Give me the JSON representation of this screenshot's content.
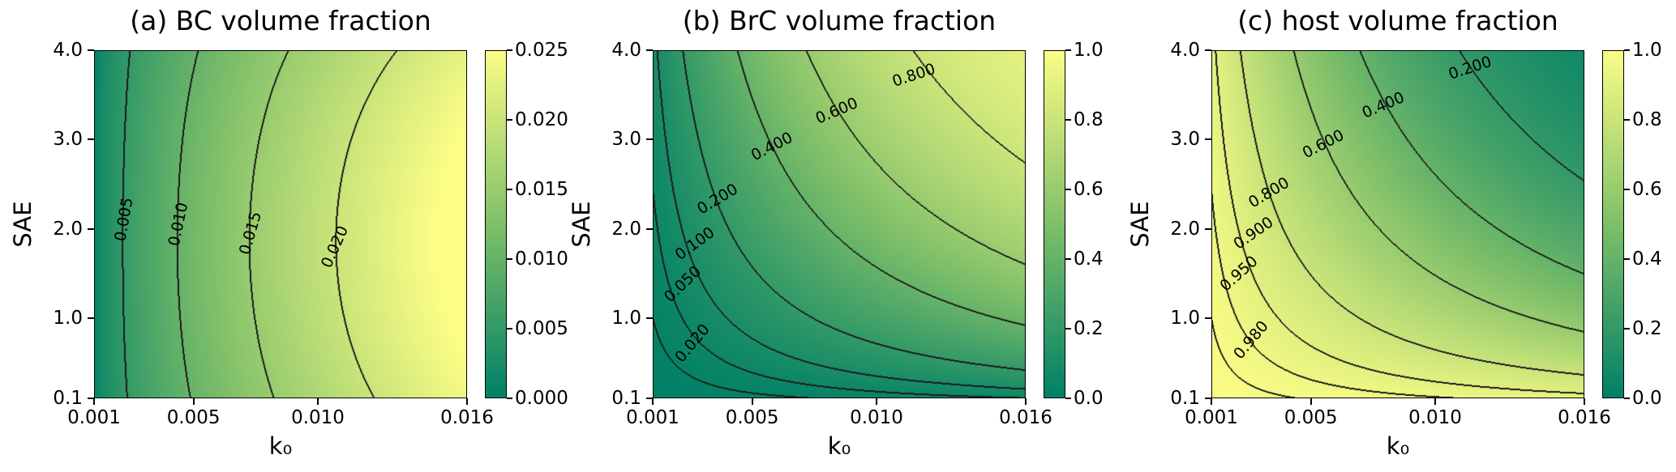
{
  "figure": {
    "background": "#ffffff",
    "text_color": "#000000"
  },
  "colormap": {
    "name": "summer-like (green to yellow)",
    "stops": [
      {
        "t": 0.0,
        "color": "#008066"
      },
      {
        "t": 0.5,
        "color": "#7fbf69"
      },
      {
        "t": 1.0,
        "color": "#fbfd85"
      }
    ]
  },
  "contour_color": "#1c1c1c",
  "chart_data": [
    {
      "id": "a",
      "type": "heatmap",
      "subtype": "filled_contour",
      "title": "(a) BC volume fraction",
      "xlabel": "k₀",
      "ylabel": "SAE",
      "x_range": [
        0.001,
        0.016
      ],
      "y_range": [
        0.1,
        4.0
      ],
      "grid": false,
      "x_ticks": [
        {
          "v": 0.001,
          "label": "0.001"
        },
        {
          "v": 0.005,
          "label": "0.005"
        },
        {
          "v": 0.01,
          "label": "0.010"
        },
        {
          "v": 0.016,
          "label": "0.016"
        }
      ],
      "y_ticks": [
        {
          "v": 0.1,
          "label": "0.1"
        },
        {
          "v": 1.0,
          "label": "1.0"
        },
        {
          "v": 2.0,
          "label": "2.0"
        },
        {
          "v": 3.0,
          "label": "3.0"
        },
        {
          "v": 4.0,
          "label": "4.0"
        }
      ],
      "vmin": 0.0,
      "vmax": 0.025,
      "colorbar_ticks": [
        {
          "v": 0.0,
          "label": "0.000"
        },
        {
          "v": 0.005,
          "label": "0.005"
        },
        {
          "v": 0.01,
          "label": "0.010"
        },
        {
          "v": 0.015,
          "label": "0.015"
        },
        {
          "v": 0.02,
          "label": "0.020"
        },
        {
          "v": 0.025,
          "label": "0.025"
        }
      ],
      "contour_levels": [
        0.005,
        0.01,
        0.015,
        0.02
      ],
      "contour_labels": [
        {
          "text": "0.005",
          "x": 0.0022,
          "y": 2.1,
          "angle": -80
        },
        {
          "text": "0.010",
          "x": 0.0044,
          "y": 2.05,
          "angle": -78
        },
        {
          "text": "0.015",
          "x": 0.0073,
          "y": 1.95,
          "angle": -74
        },
        {
          "text": "0.020",
          "x": 0.0107,
          "y": 1.8,
          "angle": -66
        }
      ],
      "field": {
        "model": "bc",
        "amp": 0.0265,
        "px": 0.65,
        "q": 0.45,
        "y0": 0.45
      }
    },
    {
      "id": "b",
      "type": "heatmap",
      "subtype": "filled_contour",
      "title": "(b) BrC volume fraction",
      "xlabel": "k₀",
      "ylabel": "SAE",
      "x_range": [
        0.001,
        0.016
      ],
      "y_range": [
        0.1,
        4.0
      ],
      "grid": false,
      "x_ticks": [
        {
          "v": 0.001,
          "label": "0.001"
        },
        {
          "v": 0.005,
          "label": "0.005"
        },
        {
          "v": 0.01,
          "label": "0.010"
        },
        {
          "v": 0.016,
          "label": "0.016"
        }
      ],
      "y_ticks": [
        {
          "v": 0.1,
          "label": "0.1"
        },
        {
          "v": 1.0,
          "label": "1.0"
        },
        {
          "v": 2.0,
          "label": "2.0"
        },
        {
          "v": 3.0,
          "label": "3.0"
        },
        {
          "v": 4.0,
          "label": "4.0"
        }
      ],
      "vmin": 0.0,
      "vmax": 1.0,
      "colorbar_ticks": [
        {
          "v": 0.0,
          "label": "0.0"
        },
        {
          "v": 0.2,
          "label": "0.2"
        },
        {
          "v": 0.4,
          "label": "0.4"
        },
        {
          "v": 0.6,
          "label": "0.6"
        },
        {
          "v": 0.8,
          "label": "0.8"
        },
        {
          "v": 1.0,
          "label": "1.0"
        }
      ],
      "contour_levels": [
        0.02,
        0.05,
        0.1,
        0.2,
        0.4,
        0.6,
        0.8
      ],
      "contour_labels": [
        {
          "text": "0.800",
          "x": 0.0115,
          "y": 3.72,
          "angle": -18
        },
        {
          "text": "0.600",
          "x": 0.0084,
          "y": 3.32,
          "angle": -23
        },
        {
          "text": "0.400",
          "x": 0.0058,
          "y": 2.92,
          "angle": -27
        },
        {
          "text": "0.200",
          "x": 0.0036,
          "y": 2.33,
          "angle": -31
        },
        {
          "text": "0.100",
          "x": 0.0027,
          "y": 1.83,
          "angle": -36
        },
        {
          "text": "0.050",
          "x": 0.0022,
          "y": 1.38,
          "angle": -44
        },
        {
          "text": "0.020",
          "x": 0.0026,
          "y": 0.72,
          "angle": -50
        }
      ],
      "field": {
        "model": "brc",
        "A": 2.4,
        "px": 1.2,
        "py": 1.05
      }
    },
    {
      "id": "c",
      "type": "heatmap",
      "subtype": "filled_contour",
      "title": "(c) host volume fraction",
      "xlabel": "k₀",
      "ylabel": "SAE",
      "x_range": [
        0.001,
        0.016
      ],
      "y_range": [
        0.1,
        4.0
      ],
      "grid": false,
      "x_ticks": [
        {
          "v": 0.001,
          "label": "0.001"
        },
        {
          "v": 0.005,
          "label": "0.005"
        },
        {
          "v": 0.01,
          "label": "0.010"
        },
        {
          "v": 0.016,
          "label": "0.016"
        }
      ],
      "y_ticks": [
        {
          "v": 0.1,
          "label": "0.1"
        },
        {
          "v": 1.0,
          "label": "1.0"
        },
        {
          "v": 2.0,
          "label": "2.0"
        },
        {
          "v": 3.0,
          "label": "3.0"
        },
        {
          "v": 4.0,
          "label": "4.0"
        }
      ],
      "vmin": 0.0,
      "vmax": 1.0,
      "colorbar_ticks": [
        {
          "v": 0.0,
          "label": "0.0"
        },
        {
          "v": 0.2,
          "label": "0.2"
        },
        {
          "v": 0.4,
          "label": "0.4"
        },
        {
          "v": 0.6,
          "label": "0.6"
        },
        {
          "v": 0.8,
          "label": "0.8"
        },
        {
          "v": 1.0,
          "label": "1.0"
        }
      ],
      "contour_levels": [
        0.2,
        0.4,
        0.6,
        0.8,
        0.9,
        0.95,
        0.98
      ],
      "contour_labels": [
        {
          "text": "0.200",
          "x": 0.0114,
          "y": 3.8,
          "angle": -18
        },
        {
          "text": "0.400",
          "x": 0.0079,
          "y": 3.38,
          "angle": -23
        },
        {
          "text": "0.600",
          "x": 0.0055,
          "y": 2.95,
          "angle": -27
        },
        {
          "text": "0.800",
          "x": 0.0033,
          "y": 2.4,
          "angle": -31
        },
        {
          "text": "0.900",
          "x": 0.0027,
          "y": 1.95,
          "angle": -35
        },
        {
          "text": "0.950",
          "x": 0.0021,
          "y": 1.5,
          "angle": -42
        },
        {
          "text": "0.980",
          "x": 0.0026,
          "y": 0.75,
          "angle": -50
        }
      ],
      "field": {
        "model": "host"
      }
    }
  ]
}
